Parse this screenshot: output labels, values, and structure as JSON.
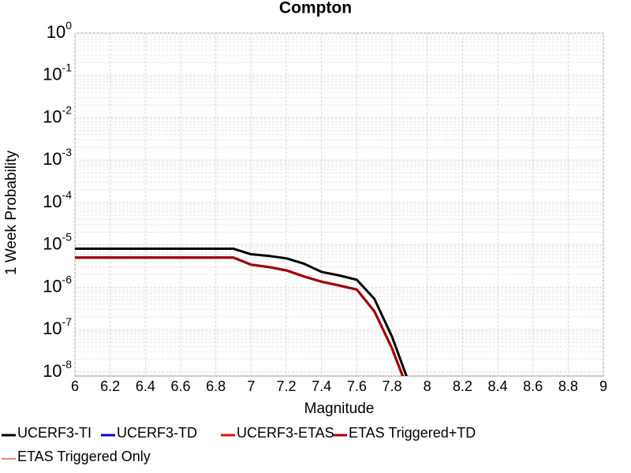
{
  "chart_data": {
    "type": "line",
    "title": "Compton",
    "x_label": "Magnitude",
    "y_label": "1 Week Probability",
    "x": [
      6.0,
      6.1,
      6.2,
      6.3,
      6.4,
      6.5,
      6.6,
      6.7,
      6.8,
      6.9,
      7.0,
      7.1,
      7.2,
      7.3,
      7.4,
      7.5,
      7.6,
      7.7,
      7.8,
      7.9
    ],
    "series": [
      {
        "name": "UCERF3-TI",
        "color": "#000000",
        "values": [
          8.1e-06,
          8.1e-06,
          8.1e-06,
          8.1e-06,
          8.1e-06,
          8.1e-06,
          8.1e-06,
          8.1e-06,
          8.1e-06,
          8.1e-06,
          6e-06,
          5.5e-06,
          4.8e-06,
          3.6e-06,
          2.3e-06,
          1.9e-06,
          1.5e-06,
          5.3e-07,
          6.8e-08,
          5e-09
        ]
      },
      {
        "name": "UCERF3-TD",
        "color": "#0000cc",
        "values": [
          5e-06,
          5e-06,
          5e-06,
          5e-06,
          5e-06,
          5e-06,
          5e-06,
          5e-06,
          5e-06,
          5e-06,
          3.4e-06,
          3e-06,
          2.5e-06,
          1.8e-06,
          1.35e-06,
          1.1e-06,
          8.8e-07,
          2.7e-07,
          3.6e-08,
          3e-09
        ]
      },
      {
        "name": "UCERF3-ETAS",
        "color": "#e01010",
        "values": [
          5e-06,
          5e-06,
          5e-06,
          5e-06,
          5e-06,
          5e-06,
          5e-06,
          5e-06,
          5e-06,
          5e-06,
          3.4e-06,
          3e-06,
          2.5e-06,
          1.8e-06,
          1.35e-06,
          1.1e-06,
          8.8e-07,
          2.7e-07,
          3.6e-08,
          3e-09
        ]
      },
      {
        "name": "ETAS Triggered+TD",
        "color": "#a00000",
        "values": [
          5e-06,
          5e-06,
          5e-06,
          5e-06,
          5e-06,
          5e-06,
          5e-06,
          5e-06,
          5e-06,
          5e-06,
          3.4e-06,
          3e-06,
          2.5e-06,
          1.8e-06,
          1.35e-06,
          1.1e-06,
          8.8e-07,
          2.7e-07,
          3.6e-08,
          3e-09
        ]
      },
      {
        "name": "ETAS Triggered Only",
        "color": "#f08080",
        "values": [
          null,
          null,
          null,
          null,
          null,
          null,
          null,
          null,
          null,
          null,
          null,
          null,
          null,
          null,
          null,
          null,
          null,
          null,
          null,
          null
        ]
      }
    ],
    "xlim": [
      6,
      9
    ],
    "xticks": [
      6,
      6.2,
      6.4,
      6.6,
      6.8,
      7,
      7.2,
      7.4,
      7.6,
      7.8,
      8,
      8.2,
      8.4,
      8.6,
      8.8,
      9
    ],
    "ylim": [
      8e-09,
      1
    ],
    "y_scale": "log",
    "yticks": [
      {
        "value": 1e-08,
        "label": "10",
        "exponent": "-8"
      },
      {
        "value": 1e-07,
        "label": "10",
        "exponent": "-7"
      },
      {
        "value": 1e-06,
        "label": "10",
        "exponent": "-6"
      },
      {
        "value": 1e-05,
        "label": "10",
        "exponent": "-5"
      },
      {
        "value": 0.0001,
        "label": "10",
        "exponent": "-4"
      },
      {
        "value": 0.001,
        "label": "10",
        "exponent": "-3"
      },
      {
        "value": 0.01,
        "label": "10",
        "exponent": "-2"
      },
      {
        "value": 0.1,
        "label": "10",
        "exponent": "-1"
      },
      {
        "value": 1,
        "label": "10",
        "exponent": "0"
      }
    ],
    "grid": true
  }
}
